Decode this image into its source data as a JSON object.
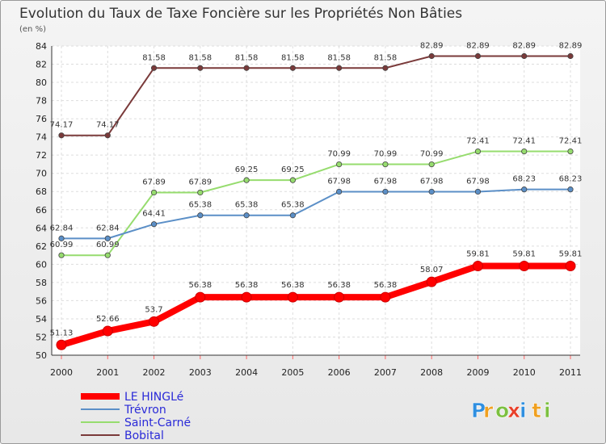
{
  "chart_data": {
    "type": "line",
    "title": "Evolution du Taux de Taxe Foncière sur les Propriétés Non Bâties",
    "ylabel": "(en %)",
    "xlabel": "",
    "ylim": [
      50,
      84
    ],
    "yticks": [
      50,
      52,
      54,
      56,
      58,
      60,
      62,
      64,
      66,
      68,
      70,
      72,
      74,
      76,
      78,
      80,
      82,
      84
    ],
    "categories": [
      "2000",
      "2001",
      "2002",
      "2003",
      "2004",
      "2005",
      "2006",
      "2007",
      "2008",
      "2009",
      "2010",
      "2011"
    ],
    "series": [
      {
        "name": "LE HINGLé",
        "color": "#ff0000",
        "values": [
          51.13,
          52.66,
          53.7,
          56.38,
          56.38,
          56.38,
          56.38,
          56.38,
          58.07,
          59.81,
          59.81,
          59.81
        ],
        "labels": [
          "51.13",
          "52.66",
          "53.7",
          "56.38",
          "56.38",
          "56.38",
          "56.38",
          "56.38",
          "58.07",
          "59.81",
          "59.81",
          "59.81"
        ]
      },
      {
        "name": "Trévron",
        "color": "#5b8fc7",
        "values": [
          62.84,
          62.84,
          64.41,
          65.38,
          65.38,
          65.38,
          67.98,
          67.98,
          67.98,
          67.98,
          68.23,
          68.23
        ],
        "labels": [
          "62.84",
          "62.84",
          "64.41",
          "65.38",
          "65.38",
          "65.38",
          "67.98",
          "67.98",
          "67.98",
          "67.98",
          "68.23",
          "68.23"
        ]
      },
      {
        "name": "Saint-Carné",
        "color": "#96dc6e",
        "values": [
          60.99,
          60.99,
          67.89,
          67.89,
          69.25,
          69.25,
          70.99,
          70.99,
          70.99,
          72.41,
          72.41,
          72.41
        ],
        "labels": [
          "60.99",
          "60.99",
          "67.89",
          "67.89",
          "69.25",
          "69.25",
          "70.99",
          "70.99",
          "70.99",
          "72.41",
          "72.41",
          "72.41"
        ]
      },
      {
        "name": "Bobital",
        "color": "#7a3a3a",
        "values": [
          74.17,
          74.17,
          81.58,
          81.58,
          81.58,
          81.58,
          81.58,
          81.58,
          82.89,
          82.89,
          82.89,
          82.89
        ],
        "labels": [
          "74.17",
          "74.17",
          "81.58",
          "81.58",
          "81.58",
          "81.58",
          "81.58",
          "81.58",
          "82.89",
          "82.89",
          "82.89",
          "82.89"
        ]
      }
    ],
    "legend_position": "bottom-left"
  },
  "brand": {
    "letters": [
      "P",
      "r",
      "o",
      "x",
      "i",
      "t",
      "i"
    ],
    "colors": [
      "#2f8fe0",
      "#f0a020",
      "#7cc040",
      "#e8402a",
      "#2f8fe0",
      "#f0a020",
      "#7cc040"
    ]
  }
}
